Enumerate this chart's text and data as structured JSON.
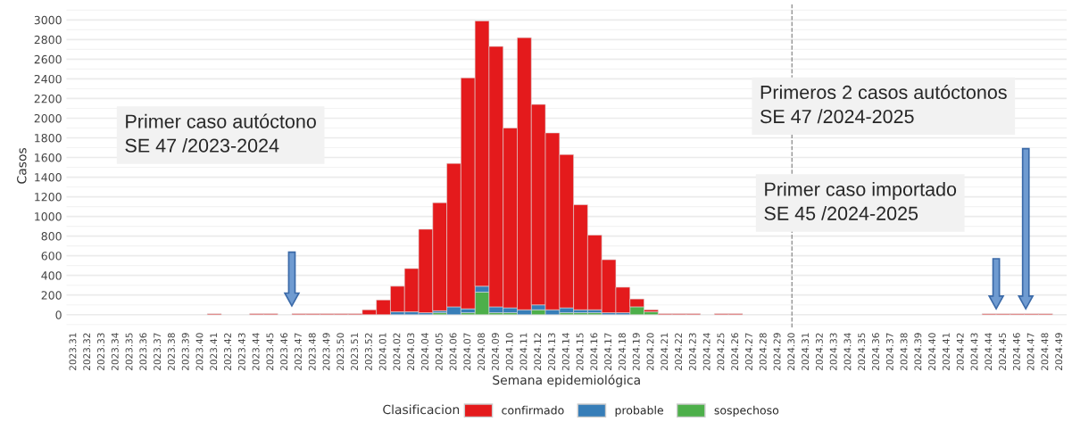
{
  "chart_data": {
    "type": "bar",
    "stacked": true,
    "xlabel": "Semana epidemiológica",
    "ylabel": "Casos",
    "legend_title": "Clasificacion",
    "legend": "bottom",
    "grid": "y",
    "categories": [
      "2023.31",
      "2023.32",
      "2023.33",
      "2023.34",
      "2023.35",
      "2023.36",
      "2023.37",
      "2023.38",
      "2023.39",
      "2023.40",
      "2023.41",
      "2023.42",
      "2023.43",
      "2023.44",
      "2023.45",
      "2023.46",
      "2023.47",
      "2023.48",
      "2023.49",
      "2023.50",
      "2023.51",
      "2023.52",
      "2024.01",
      "2024.02",
      "2024.03",
      "2024.04",
      "2024.05",
      "2024.06",
      "2024.07",
      "2024.08",
      "2024.09",
      "2024.10",
      "2024.11",
      "2024.12",
      "2024.13",
      "2024.14",
      "2024.15",
      "2024.16",
      "2024.17",
      "2024.18",
      "2024.19",
      "2024.20",
      "2024.21",
      "2024.22",
      "2024.23",
      "2024.24",
      "2024.25",
      "2024.26",
      "2024.27",
      "2024.28",
      "2024.29",
      "2024.30",
      "2024.31",
      "2024.32",
      "2024.33",
      "2024.34",
      "2024.35",
      "2024.36",
      "2024.37",
      "2024.38",
      "2024.39",
      "2024.40",
      "2024.41",
      "2024.42",
      "2024.43",
      "2024.44",
      "2024.45",
      "2024.46",
      "2024.47",
      "2024.48",
      "2024.49"
    ],
    "series": [
      {
        "name": "sospechoso",
        "color": "#4daf4a",
        "values": [
          0,
          0,
          0,
          0,
          0,
          0,
          0,
          0,
          0,
          0,
          0,
          0,
          0,
          0,
          0,
          0,
          0,
          0,
          0,
          0,
          0,
          0,
          0,
          0,
          0,
          0,
          20,
          0,
          20,
          230,
          20,
          20,
          0,
          50,
          0,
          20,
          20,
          20,
          0,
          0,
          80,
          30,
          0,
          0,
          0,
          0,
          0,
          0,
          0,
          0,
          0,
          0,
          0,
          0,
          0,
          0,
          0,
          0,
          0,
          0,
          0,
          0,
          0,
          0,
          0,
          0,
          0,
          0,
          0,
          0,
          0
        ]
      },
      {
        "name": "probable",
        "color": "#377eb8",
        "values": [
          0,
          0,
          0,
          0,
          0,
          0,
          0,
          0,
          0,
          0,
          0,
          0,
          0,
          0,
          0,
          0,
          0,
          0,
          0,
          0,
          0,
          0,
          0,
          30,
          30,
          20,
          20,
          80,
          40,
          60,
          60,
          50,
          50,
          50,
          50,
          50,
          30,
          30,
          20,
          20,
          0,
          0,
          0,
          0,
          0,
          0,
          0,
          0,
          0,
          0,
          0,
          0,
          0,
          0,
          0,
          0,
          0,
          0,
          0,
          0,
          0,
          0,
          0,
          0,
          0,
          0,
          0,
          0,
          0,
          0,
          0
        ]
      },
      {
        "name": "confirmado",
        "color": "#e41a1c",
        "values": [
          0,
          0,
          0,
          0,
          0,
          0,
          0,
          0,
          0,
          0,
          10,
          0,
          0,
          10,
          10,
          0,
          10,
          10,
          10,
          10,
          10,
          50,
          150,
          260,
          440,
          850,
          1100,
          1460,
          2350,
          2700,
          2650,
          1830,
          2770,
          2040,
          1800,
          1560,
          1070,
          760,
          540,
          260,
          80,
          20,
          10,
          10,
          10,
          0,
          10,
          10,
          0,
          0,
          0,
          0,
          0,
          0,
          0,
          0,
          0,
          0,
          0,
          0,
          0,
          0,
          0,
          0,
          0,
          10,
          10,
          10,
          10,
          10,
          0
        ]
      }
    ],
    "ylim": [
      -130,
      3160
    ],
    "yticks": [
      0,
      200,
      400,
      600,
      800,
      1000,
      1200,
      1400,
      1600,
      1800,
      2000,
      2200,
      2400,
      2600,
      2800,
      3000
    ],
    "ref_lines": [
      {
        "axis": "x",
        "value": "2024.30",
        "color": "#888888",
        "line_style": "dashed"
      }
    ],
    "annotations": [
      "Primer caso autóctono\nSE 47 /2023-2024",
      "Primeros 2 casos autóctonos\nSE 47 /2024-2025",
      "Primer caso importado\nSE 45 /2024-2025"
    ]
  }
}
